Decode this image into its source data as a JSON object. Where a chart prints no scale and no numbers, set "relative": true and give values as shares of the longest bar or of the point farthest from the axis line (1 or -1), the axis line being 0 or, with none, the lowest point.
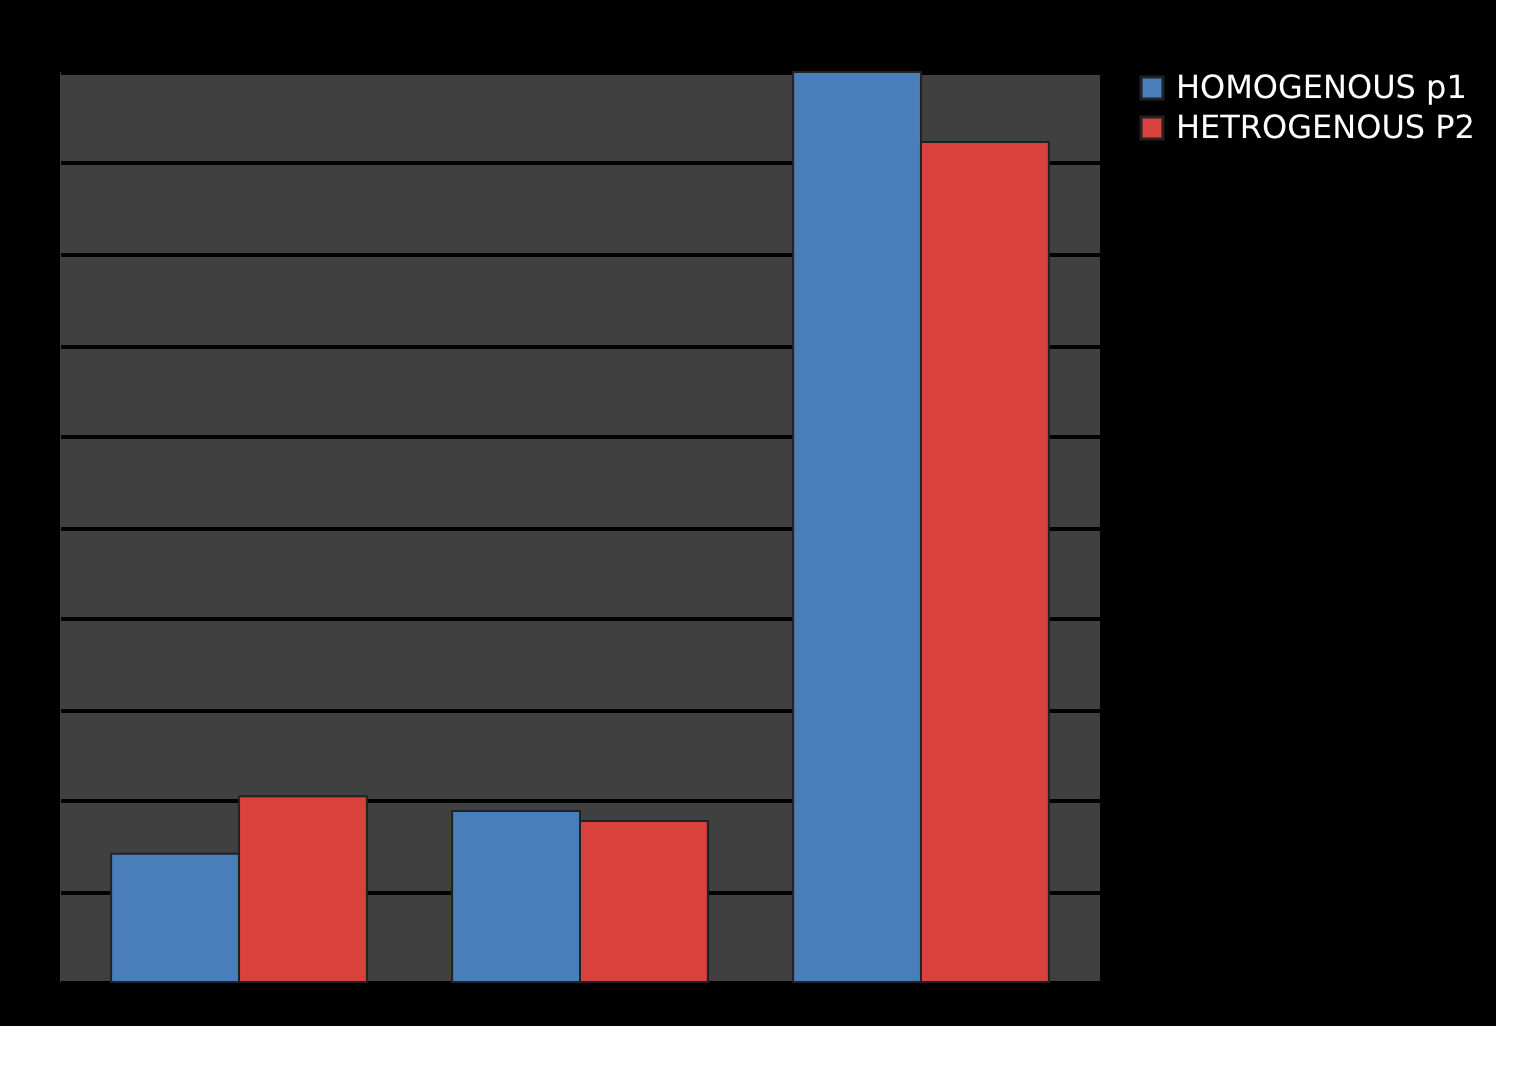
{
  "chart_data": {
    "type": "bar",
    "categories": [
      null,
      null,
      null
    ],
    "relative": true,
    "grid": "y",
    "legend": "right",
    "series": [
      {
        "name": "HOMOGENOUS p1",
        "color": "#4a7ebb",
        "values": [
          0.141,
          0.188,
          1
        ]
      },
      {
        "name": "HETROGENOUS P2",
        "color": "#d9413d",
        "values": [
          0.204,
          0.177,
          0.923
        ]
      }
    ]
  }
}
